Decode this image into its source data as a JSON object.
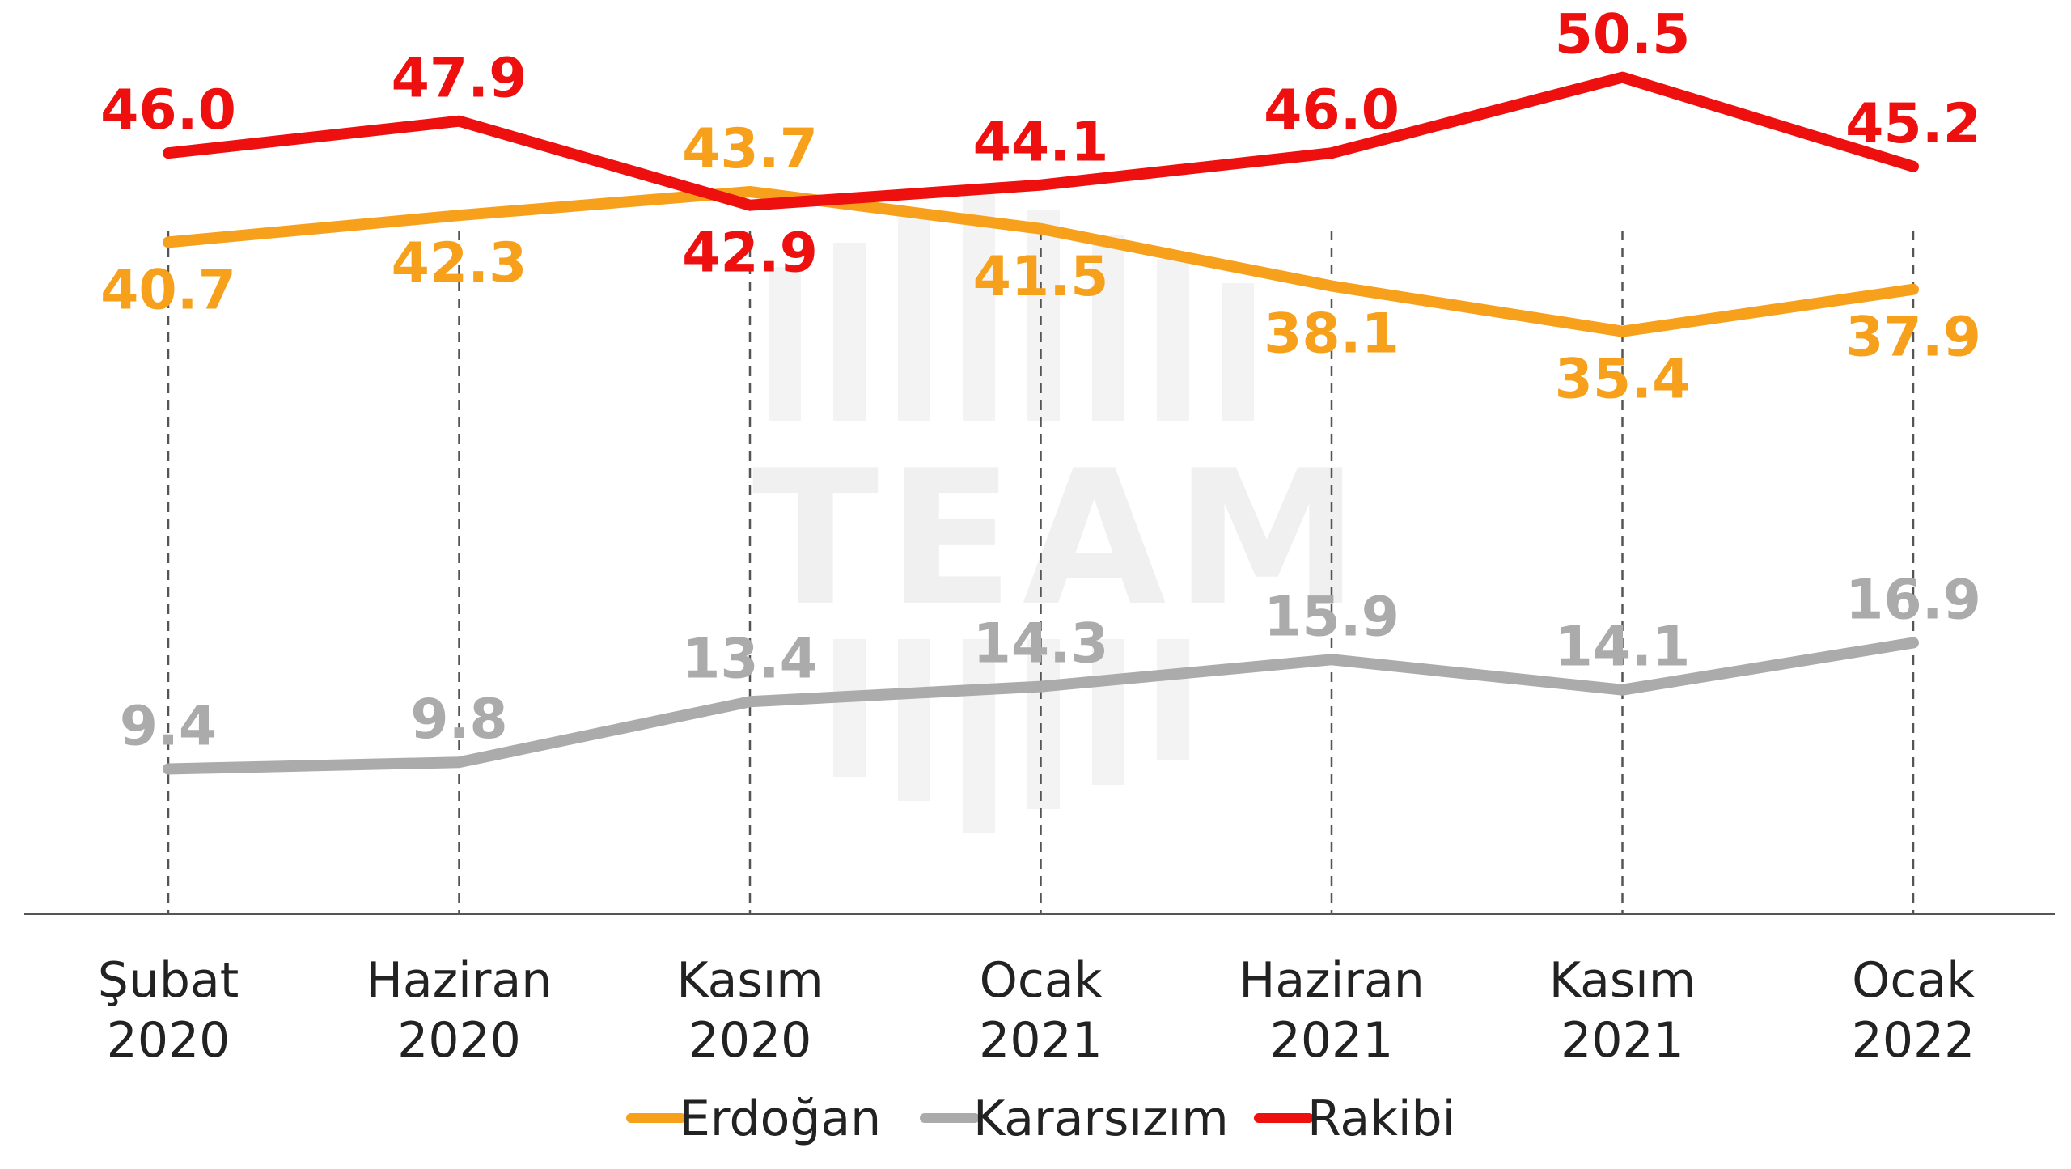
{
  "watermark": {
    "text": "TEAM"
  },
  "chart_data": {
    "type": "line",
    "categories": [
      "Şubat 2020",
      "Haziran 2020",
      "Kasım 2020",
      "Ocak 2021",
      "Haziran 2021",
      "Kasım 2021",
      "Ocak 2022"
    ],
    "category_lines": [
      [
        "Şubat",
        "2020"
      ],
      [
        "Haziran",
        "2020"
      ],
      [
        "Kasım",
        "2020"
      ],
      [
        "Ocak",
        "2021"
      ],
      [
        "Haziran",
        "2021"
      ],
      [
        "Kasım",
        "2021"
      ],
      [
        "Ocak",
        "2022"
      ]
    ],
    "series": [
      {
        "name": "Erdoğan",
        "color": "#f7a01b",
        "values": [
          40.7,
          42.3,
          43.7,
          41.5,
          38.1,
          35.4,
          37.9
        ],
        "labels": [
          "40.7",
          "42.3",
          "43.7",
          "41.5",
          "38.1",
          "35.4",
          "37.9"
        ],
        "label_side": [
          "below",
          "below",
          "above",
          "below",
          "below",
          "below",
          "below"
        ]
      },
      {
        "name": "Kararsızım",
        "color": "#ababab",
        "values": [
          9.4,
          9.8,
          13.4,
          14.3,
          15.9,
          14.1,
          16.9
        ],
        "labels": [
          "9.4",
          "9.8",
          "13.4",
          "14.3",
          "15.9",
          "14.1",
          "16.9"
        ],
        "label_side": [
          "above",
          "above",
          "above",
          "above",
          "above",
          "above",
          "above"
        ]
      },
      {
        "name": "Rakibi",
        "color": "#ee0f0f",
        "values": [
          46.0,
          47.9,
          42.9,
          44.1,
          46.0,
          50.5,
          45.2
        ],
        "labels": [
          "46.0",
          "47.9",
          "42.9",
          "44.1",
          "46.0",
          "50.5",
          "45.2"
        ],
        "label_side": [
          "above",
          "above",
          "below",
          "above",
          "above",
          "above",
          "above"
        ]
      }
    ],
    "title": "",
    "xlabel": "",
    "ylabel": "",
    "ylim": [
      0,
      55
    ],
    "grid": "vertical dashed lines at each category",
    "legend_position": "bottom-center"
  }
}
